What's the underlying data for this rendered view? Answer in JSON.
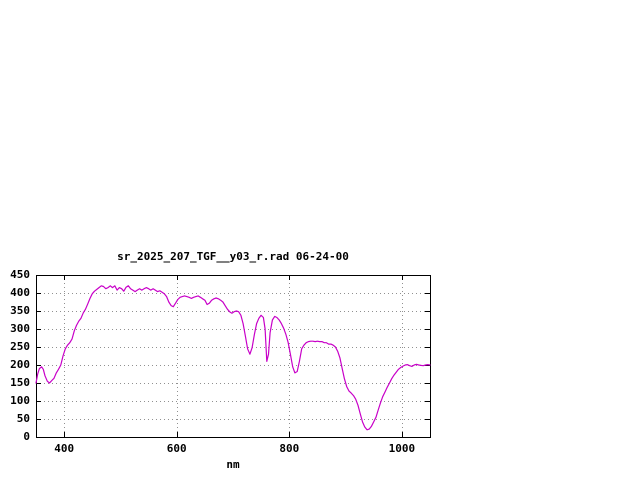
{
  "window": {
    "background": "#ffffff",
    "text_color": "#000000"
  },
  "chart_data": {
    "type": "line",
    "title": "sr_2025_207_TGF__y03_r.rad 06-24-00",
    "xlabel": "nm",
    "ylabel": "",
    "xlim": [
      350,
      1050
    ],
    "ylim": [
      0,
      450
    ],
    "xticks": [
      400,
      600,
      800,
      1000
    ],
    "yticks": [
      0,
      50,
      100,
      150,
      200,
      250,
      300,
      350,
      400,
      450
    ],
    "grid": true,
    "legend": "none",
    "line_color": "#c800c8",
    "grid_color": "#909090",
    "border_color": "#000000",
    "series": [
      {
        "name": "sr_2025_207_TGF__y03_r.rad",
        "x": [
          350,
          353,
          356,
          360,
          363,
          366,
          370,
          374,
          378,
          382,
          386,
          390,
          394,
          398,
          402,
          406,
          410,
          414,
          418,
          422,
          426,
          430,
          434,
          438,
          442,
          446,
          450,
          454,
          458,
          462,
          466,
          470,
          474,
          478,
          482,
          486,
          490,
          494,
          498,
          502,
          506,
          510,
          514,
          518,
          522,
          526,
          530,
          534,
          538,
          542,
          546,
          550,
          554,
          558,
          562,
          566,
          570,
          574,
          578,
          582,
          586,
          590,
          594,
          598,
          602,
          606,
          610,
          614,
          618,
          622,
          626,
          630,
          634,
          638,
          642,
          646,
          650,
          654,
          658,
          662,
          666,
          670,
          674,
          678,
          682,
          686,
          690,
          694,
          698,
          702,
          706,
          710,
          714,
          718,
          722,
          726,
          730,
          734,
          738,
          742,
          746,
          750,
          754,
          757,
          760,
          763,
          766,
          770,
          774,
          778,
          782,
          786,
          790,
          794,
          798,
          802,
          806,
          810,
          814,
          818,
          822,
          826,
          830,
          834,
          838,
          842,
          846,
          850,
          854,
          858,
          862,
          866,
          870,
          874,
          878,
          882,
          886,
          890,
          894,
          898,
          902,
          906,
          910,
          914,
          918,
          922,
          926,
          930,
          934,
          938,
          942,
          946,
          950,
          954,
          958,
          962,
          966,
          970,
          974,
          978,
          982,
          986,
          990,
          994,
          998,
          1002,
          1006,
          1010,
          1014,
          1018,
          1022,
          1026,
          1030,
          1034,
          1038,
          1042,
          1046,
          1050
        ],
        "y": [
          150,
          175,
          190,
          195,
          188,
          170,
          155,
          150,
          157,
          163,
          178,
          188,
          200,
          225,
          245,
          255,
          262,
          272,
          295,
          310,
          322,
          330,
          345,
          355,
          370,
          385,
          398,
          405,
          410,
          415,
          420,
          418,
          412,
          415,
          420,
          415,
          420,
          408,
          415,
          412,
          405,
          416,
          420,
          412,
          408,
          404,
          408,
          412,
          408,
          412,
          415,
          412,
          408,
          412,
          408,
          404,
          406,
          402,
          398,
          390,
          375,
          365,
          362,
          372,
          382,
          388,
          390,
          392,
          390,
          388,
          385,
          388,
          390,
          392,
          388,
          384,
          380,
          368,
          372,
          380,
          384,
          386,
          384,
          380,
          375,
          365,
          355,
          348,
          344,
          348,
          350,
          348,
          338,
          315,
          280,
          245,
          230,
          248,
          285,
          315,
          330,
          338,
          332,
          300,
          210,
          230,
          290,
          325,
          335,
          332,
          325,
          315,
          302,
          285,
          262,
          230,
          195,
          178,
          182,
          210,
          245,
          255,
          262,
          265,
          266,
          266,
          265,
          266,
          265,
          265,
          262,
          262,
          258,
          258,
          255,
          250,
          238,
          220,
          190,
          162,
          140,
          128,
          122,
          115,
          105,
          88,
          65,
          42,
          28,
          20,
          22,
          30,
          42,
          55,
          75,
          95,
          112,
          125,
          138,
          150,
          162,
          172,
          180,
          188,
          193,
          197,
          200,
          201,
          198,
          196,
          200,
          202,
          200,
          199,
          198,
          200,
          201,
          200
        ]
      }
    ]
  }
}
